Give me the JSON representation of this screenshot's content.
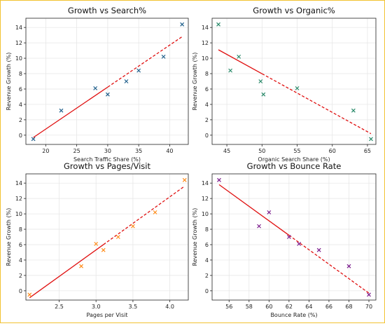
{
  "chart_data": [
    {
      "type": "scatter",
      "title": "Growth vs Search%",
      "xlabel": "Search Traffic Share (%)",
      "ylabel": "Revenue Growth (%)",
      "xlim": [
        16.8,
        43.0
      ],
      "ylim": [
        -1.2,
        15.2
      ],
      "xticks": [
        20,
        25,
        30,
        35,
        40
      ],
      "yticks": [
        0,
        2,
        4,
        6,
        8,
        10,
        12,
        14
      ],
      "marker": "x",
      "color": "#1f5f8b",
      "points": [
        {
          "x": 18,
          "y": -0.5
        },
        {
          "x": 22.5,
          "y": 3.2
        },
        {
          "x": 28,
          "y": 6.1
        },
        {
          "x": 30,
          "y": 5.3
        },
        {
          "x": 33,
          "y": 7.0
        },
        {
          "x": 35,
          "y": 8.4
        },
        {
          "x": 39,
          "y": 10.2
        },
        {
          "x": 42,
          "y": 14.4
        }
      ],
      "trend": {
        "x1": 18,
        "y1": -0.3,
        "x2": 42,
        "y2": 12.8,
        "xbreak": 30
      },
      "trend_color": "#e01010",
      "grid": true
    },
    {
      "type": "scatter",
      "title": "Growth vs Organic%",
      "xlabel": "Organic Search Share (%)",
      "ylabel": "Revenue Growth (%)",
      "xlim": [
        42.9,
        66.2
      ],
      "ylim": [
        -1.2,
        15.2
      ],
      "xticks": [
        45,
        50,
        55,
        60,
        65
      ],
      "yticks": [
        0,
        2,
        4,
        6,
        8,
        10,
        12,
        14
      ],
      "marker": "x",
      "color": "#2a8a6a",
      "points": [
        {
          "x": 43.8,
          "y": 14.4
        },
        {
          "x": 45.5,
          "y": 8.4
        },
        {
          "x": 46.7,
          "y": 10.2
        },
        {
          "x": 49.8,
          "y": 7.0
        },
        {
          "x": 50.2,
          "y": 5.3
        },
        {
          "x": 55.0,
          "y": 6.1
        },
        {
          "x": 63.0,
          "y": 3.2
        },
        {
          "x": 65.5,
          "y": -0.5
        }
      ],
      "trend": {
        "x1": 43.8,
        "y1": 11.1,
        "x2": 65.5,
        "y2": 0.2,
        "xbreak": 50
      },
      "trend_color": "#e01010",
      "grid": true
    },
    {
      "type": "scatter",
      "title": "Growth vs Pages/Visit",
      "xlabel": "Pages per Visit",
      "ylabel": "Revenue Growth (%)",
      "xlim": [
        2.05,
        4.25
      ],
      "ylim": [
        -1.2,
        15.2
      ],
      "xticks": [
        2.5,
        3.0,
        3.5,
        4.0
      ],
      "xtick_labels": [
        "2.5",
        "3.0",
        "3.5",
        "4.0"
      ],
      "yticks": [
        0,
        2,
        4,
        6,
        8,
        10,
        12,
        14
      ],
      "marker": "x",
      "color": "#ff8c1a",
      "points": [
        {
          "x": 2.1,
          "y": -0.5
        },
        {
          "x": 2.8,
          "y": 3.2
        },
        {
          "x": 3.0,
          "y": 6.1
        },
        {
          "x": 3.1,
          "y": 5.3
        },
        {
          "x": 3.3,
          "y": 7.0
        },
        {
          "x": 3.5,
          "y": 8.4
        },
        {
          "x": 3.8,
          "y": 10.2
        },
        {
          "x": 4.2,
          "y": 14.4
        }
      ],
      "trend": {
        "x1": 2.1,
        "y1": -0.9,
        "x2": 4.2,
        "y2": 13.6,
        "xbreak": 3.1
      },
      "trend_color": "#e01010",
      "grid": true
    },
    {
      "type": "scatter",
      "title": "Growth vs Bounce Rate",
      "xlabel": "Bounce Rate (%)",
      "ylabel": "Revenue Growth (%)",
      "xlim": [
        54.3,
        70.7
      ],
      "ylim": [
        -1.2,
        15.2
      ],
      "xticks": [
        56,
        58,
        60,
        62,
        64,
        66,
        68,
        70
      ],
      "yticks": [
        0,
        2,
        4,
        6,
        8,
        10,
        12,
        14
      ],
      "marker": "x",
      "color": "#7a1a8c",
      "points": [
        {
          "x": 55,
          "y": 14.4
        },
        {
          "x": 59,
          "y": 8.4
        },
        {
          "x": 60,
          "y": 10.2
        },
        {
          "x": 62,
          "y": 7.0
        },
        {
          "x": 63,
          "y": 6.1
        },
        {
          "x": 65,
          "y": 5.3
        },
        {
          "x": 68,
          "y": 3.2
        },
        {
          "x": 70,
          "y": -0.5
        }
      ],
      "trend": {
        "x1": 55,
        "y1": 13.8,
        "x2": 70,
        "y2": -0.3,
        "xbreak": 62
      },
      "trend_color": "#e01010",
      "grid": true
    }
  ]
}
